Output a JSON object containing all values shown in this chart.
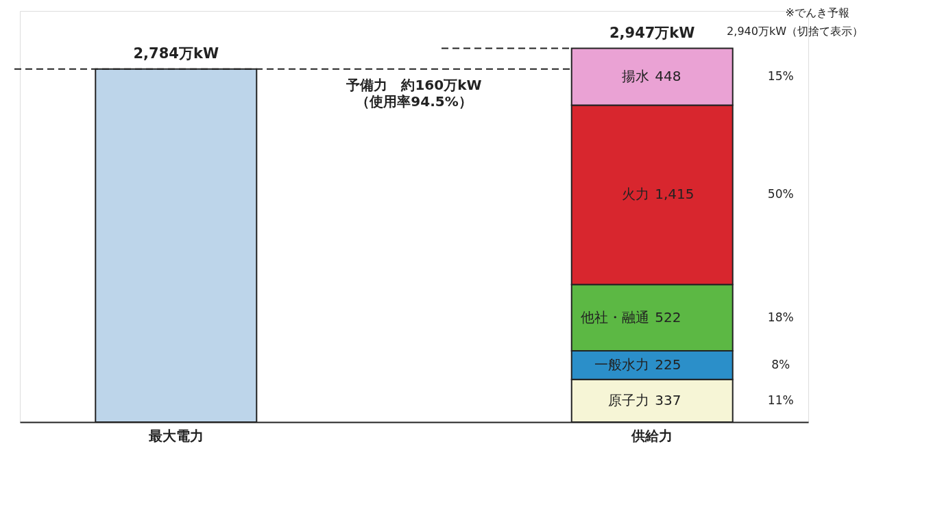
{
  "chart_data": {
    "type": "bar",
    "stacked": true,
    "categories": [
      "最大電力",
      "供給力"
    ],
    "series": [
      {
        "color": "#bdd5ea",
        "values": [
          2784,
          null
        ],
        "value_labels": [
          "2,784万kW",
          null
        ]
      },
      {
        "name": "原子力",
        "color": "#f6f5d6",
        "values": [
          null,
          337
        ],
        "value_labels": [
          null,
          "337"
        ]
      },
      {
        "name": "一般水力",
        "color": "#2b8fc9",
        "values": [
          null,
          225
        ],
        "value_labels": [
          null,
          "225"
        ]
      },
      {
        "name": "他社・融通",
        "color": "#5cb844",
        "values": [
          null,
          522
        ],
        "value_labels": [
          null,
          "522"
        ]
      },
      {
        "name": "火力",
        "color": "#d8262e",
        "values": [
          null,
          1415
        ],
        "value_labels": [
          null,
          "1,415"
        ]
      },
      {
        "name": "揚水",
        "color": "#eaa2d4",
        "values": [
          null,
          448
        ],
        "value_labels": [
          null,
          "448"
        ]
      }
    ],
    "totals": [
      null,
      "2,947万kW"
    ],
    "ref_lines": [
      {
        "axis": "y",
        "value": 2784,
        "line_style": "dashed"
      },
      {
        "axis": "y",
        "value": 2947,
        "line_style": "dashed"
      }
    ],
    "annotations": [
      "予備力　約160万kW",
      "（使用率94.5%）",
      "※でんき予報",
      "2,940万kW（切捨て表示）",
      "15%",
      "50%",
      "18%",
      "8%",
      "11%"
    ]
  }
}
